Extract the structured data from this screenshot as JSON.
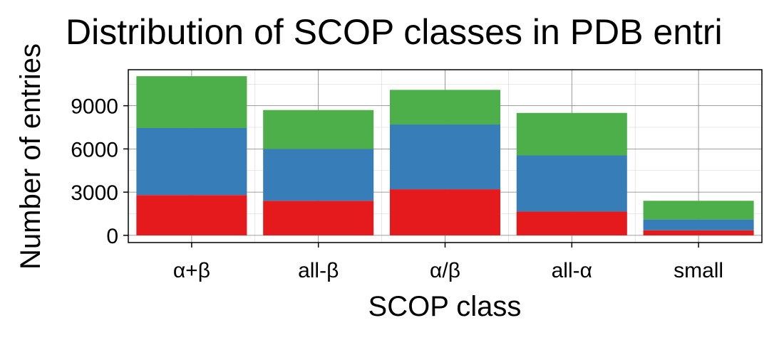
{
  "chart_data": {
    "type": "bar",
    "stacked": true,
    "title": "Distribution of SCOP classes in PDB entri",
    "xlabel": "SCOP class",
    "ylabel": "Number of entries",
    "categories": [
      "α+β",
      "all-β",
      "α/β",
      "all-α",
      "small"
    ],
    "series": [
      {
        "color": "#e41a1c",
        "values": [
          2800,
          2400,
          3200,
          1650,
          350
        ]
      },
      {
        "color": "#377eb8",
        "values": [
          4650,
          3600,
          4500,
          3900,
          750
        ]
      },
      {
        "color": "#4daf4a",
        "values": [
          3600,
          2700,
          2400,
          2950,
          1300
        ]
      }
    ],
    "ylim": [
      -500,
      11500
    ],
    "yticks": [
      0,
      3000,
      6000,
      9000
    ],
    "yminor": [
      1500,
      4500,
      7500,
      10500
    ],
    "grid": true,
    "legend": "none"
  }
}
